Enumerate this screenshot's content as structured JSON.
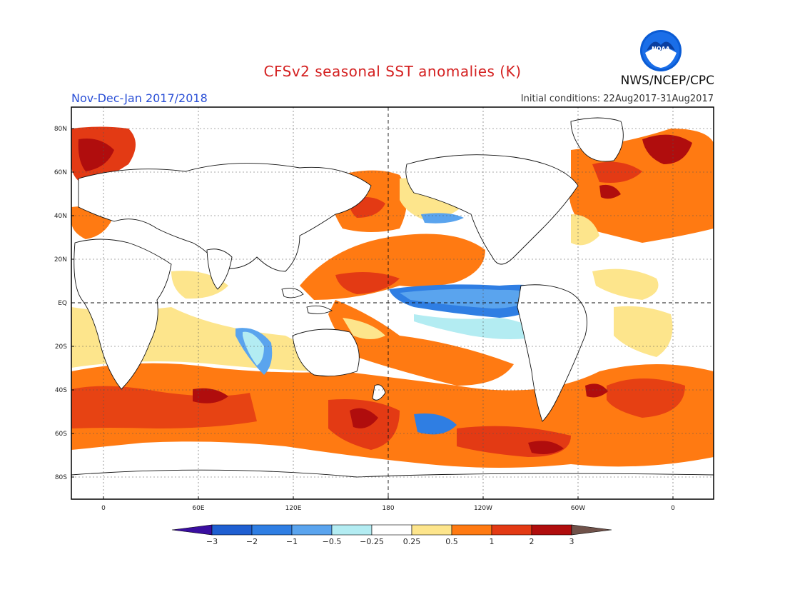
{
  "header": {
    "title": "CFSv2 seasonal SST anomalies (K)",
    "period": "Nov-Dec-Jan 2017/2018",
    "initial_conditions": "Initial conditions: 22Aug2017-31Aug2017",
    "organization": "NWS/NCEP/CPC",
    "logo_text": "NOAA"
  },
  "map": {
    "lat_ticks": [
      "80N",
      "60N",
      "40N",
      "20N",
      "EQ",
      "20S",
      "40S",
      "60S",
      "80S"
    ],
    "lon_ticks": [
      "0",
      "60E",
      "120E",
      "180",
      "120W",
      "60W",
      "0"
    ],
    "lon_range": [
      -20,
      380
    ],
    "lat_range": [
      -90,
      90
    ]
  },
  "colorbar": {
    "labels": [
      "−3",
      "−2",
      "−1",
      "−0.5",
      "−0.25",
      "0.25",
      "0.5",
      "1",
      "2",
      "3"
    ],
    "colors": [
      "#3a0ea0",
      "#1f5fd1",
      "#2f7ee3",
      "#5aa4ee",
      "#b3ecf2",
      "#ffffff",
      "#fde58c",
      "#ff7a12",
      "#e33a14",
      "#b00d0d",
      "#70524a"
    ]
  }
}
